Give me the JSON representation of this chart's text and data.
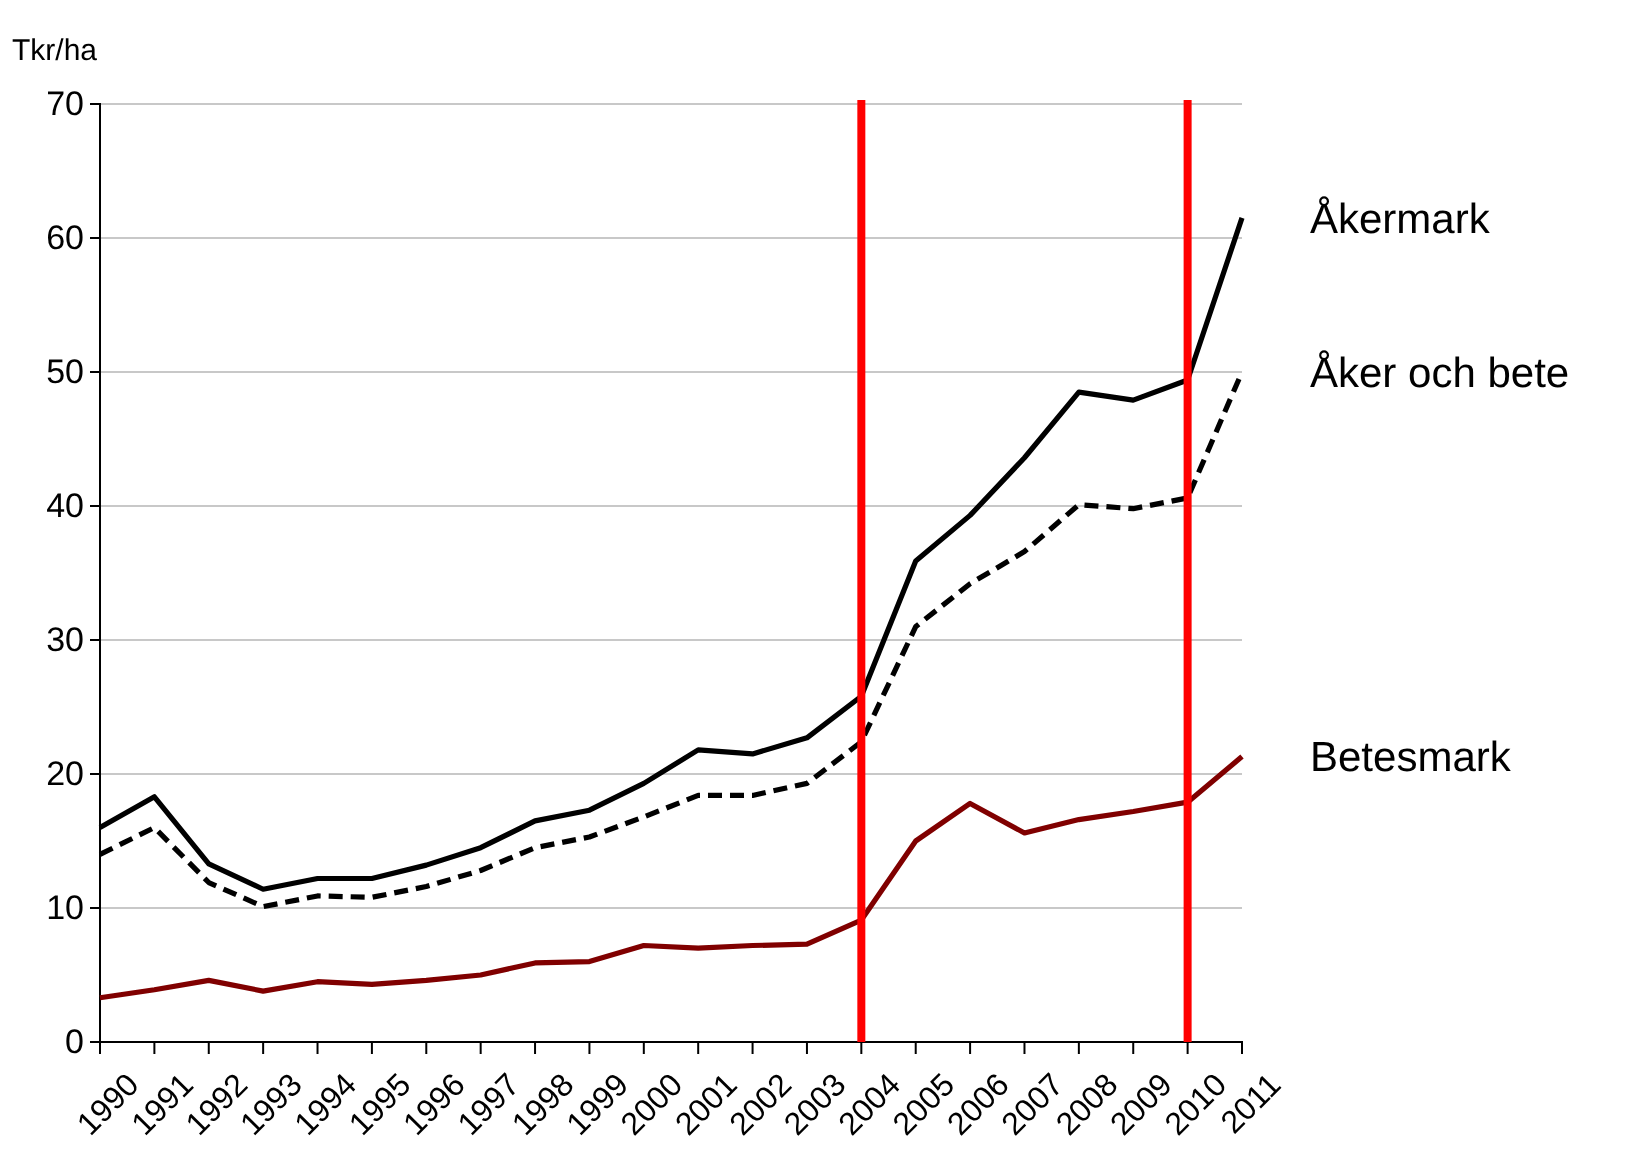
{
  "chart_data": {
    "type": "line",
    "ylabel": "Tkr/ha",
    "categories": [
      "1990",
      "1991",
      "1992",
      "1993",
      "1994",
      "1995",
      "1996",
      "1997",
      "1998",
      "1999",
      "2000",
      "2001",
      "2002",
      "2003",
      "2004",
      "2005",
      "2006",
      "2007",
      "2008",
      "2009",
      "2010",
      "2011"
    ],
    "series": [
      {
        "name": "Åkermark",
        "color": "#000000",
        "line_style": "solid",
        "values": [
          16,
          18.3,
          13.3,
          11.4,
          12.2,
          12.2,
          13.2,
          14.5,
          16.5,
          17.3,
          19.3,
          21.8,
          21.5,
          22.7,
          25.8,
          35.9,
          39.3,
          43.6,
          48.5,
          47.9,
          49.4,
          61.5
        ]
      },
      {
        "name": "Åker och bete",
        "color": "#000000",
        "line_style": "dashed",
        "values": [
          14,
          16,
          11.9,
          10.1,
          10.9,
          10.8,
          11.6,
          12.8,
          14.5,
          15.3,
          16.8,
          18.4,
          18.4,
          19.3,
          22.4,
          31,
          34.2,
          36.6,
          40.1,
          39.8,
          40.6,
          50
        ]
      },
      {
        "name": "Betesmark",
        "color": "#800000",
        "line_style": "solid",
        "values": [
          3.3,
          3.9,
          4.6,
          3.8,
          4.5,
          4.3,
          4.6,
          5.0,
          5.9,
          6.0,
          7.2,
          7.0,
          7.2,
          7.3,
          9.1,
          15,
          17.8,
          15.6,
          16.6,
          17.2,
          17.9,
          21.3
        ]
      }
    ],
    "ylim": [
      0,
      70
    ],
    "yticks": [
      0,
      10,
      20,
      30,
      40,
      50,
      60,
      70
    ],
    "grid": "y",
    "legend": false,
    "marker": "none",
    "ref_lines": [
      {
        "axis": "x",
        "value": "2004",
        "color": "#ff0000"
      },
      {
        "axis": "x",
        "value": "2010",
        "color": "#ff0000"
      }
    ]
  }
}
